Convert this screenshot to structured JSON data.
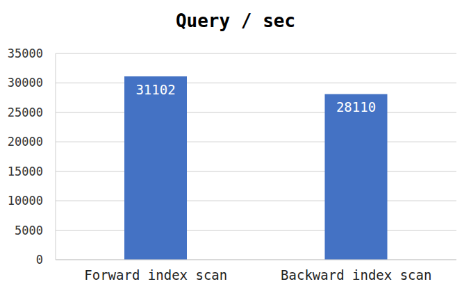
{
  "chart_data": {
    "type": "bar",
    "title": "Query / sec",
    "categories": [
      "Forward index scan",
      "Backward index scan"
    ],
    "values": [
      31102,
      28110
    ],
    "color": "#4472c4",
    "ylim": [
      0,
      35000
    ],
    "yticks": [
      0,
      5000,
      10000,
      15000,
      20000,
      25000,
      30000,
      35000
    ],
    "grid": true,
    "data_labels": true
  }
}
